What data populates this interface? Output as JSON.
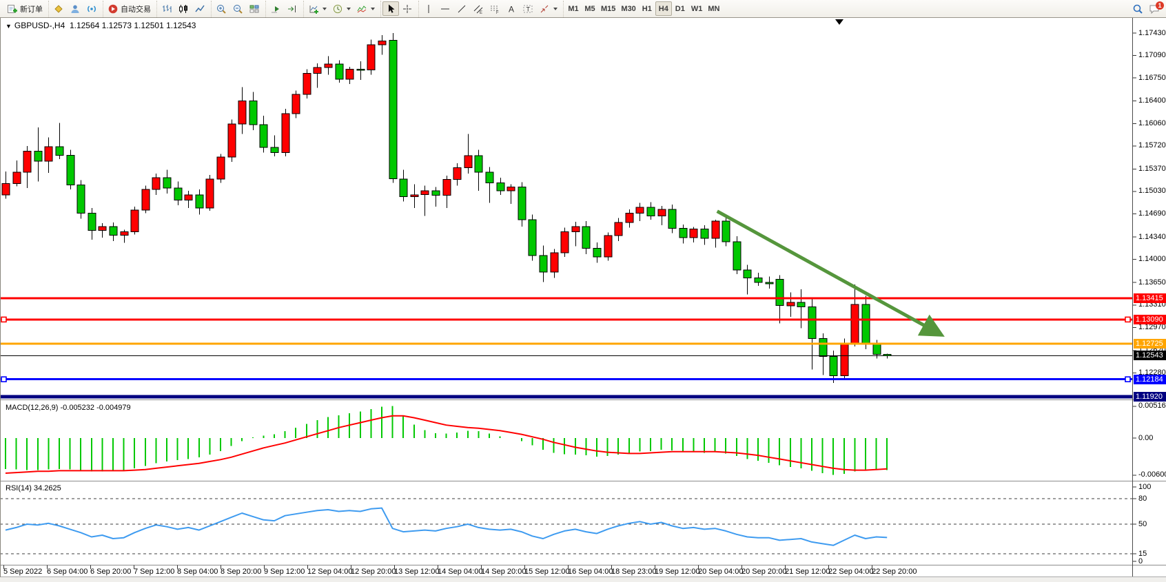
{
  "toolbar": {
    "new_order_label": "新订单",
    "autotrade_label": "自动交易",
    "timeframes": [
      "M1",
      "M5",
      "M15",
      "M30",
      "H1",
      "H4",
      "D1",
      "W1",
      "MN"
    ],
    "active_timeframe": "H4",
    "chat_badge": "1"
  },
  "chart": {
    "symbol_period": "GBPUSD-,H4",
    "ohlc_values": "1.12564 1.12573 1.12501 1.12543"
  },
  "chart_data": {
    "type": "candlestick",
    "symbol": "GBPUSD-",
    "timeframe": "H4",
    "up_color": "#ff0000",
    "down_color": "#00c800",
    "current": {
      "open": "1.12564",
      "high": "1.12573",
      "low": "1.12501",
      "close": "1.12543"
    },
    "y_axis_ticks": [
      "1.17430",
      "1.17090",
      "1.16750",
      "1.16400",
      "1.16060",
      "1.15720",
      "1.15370",
      "1.15030",
      "1.14690",
      "1.14340",
      "1.14000",
      "1.13650",
      "1.13310",
      "1.12970",
      "1.12620",
      "1.12280"
    ],
    "x_axis_labels": [
      "5 Sep 2022",
      "6 Sep 04:00",
      "6 Sep 20:00",
      "7 Sep 12:00",
      "8 Sep 04:00",
      "8 Sep 20:00",
      "9 Sep 12:00",
      "12 Sep 04:00",
      "12 Sep 20:00",
      "13 Sep 12:00",
      "14 Sep 04:00",
      "14 Sep 20:00",
      "15 Sep 12:00",
      "16 Sep 04:00",
      "18 Sep 23:00",
      "19 Sep 12:00",
      "20 Sep 04:00",
      "20 Sep 20:00",
      "21 Sep 12:00",
      "22 Sep 04:00",
      "22 Sep 20:00"
    ],
    "candles": [
      [
        1.1498,
        1.1533,
        1.1492,
        1.1515
      ],
      [
        1.1515,
        1.155,
        1.1511,
        1.1532
      ],
      [
        1.1532,
        1.1572,
        1.1508,
        1.1564
      ],
      [
        1.1564,
        1.16,
        1.1518,
        1.1549
      ],
      [
        1.1549,
        1.1585,
        1.1531,
        1.1571
      ],
      [
        1.1571,
        1.1607,
        1.1552,
        1.1558
      ],
      [
        1.1558,
        1.1566,
        1.1506,
        1.1513
      ],
      [
        1.1513,
        1.152,
        1.1462,
        1.147
      ],
      [
        1.147,
        1.1478,
        1.143,
        1.1444
      ],
      [
        1.1444,
        1.1455,
        1.1433,
        1.145
      ],
      [
        1.145,
        1.1456,
        1.1428,
        1.1437
      ],
      [
        1.1437,
        1.1445,
        1.1425,
        1.1442
      ],
      [
        1.1442,
        1.148,
        1.1438,
        1.1475
      ],
      [
        1.1475,
        1.1512,
        1.147,
        1.1506
      ],
      [
        1.1506,
        1.153,
        1.1498,
        1.1524
      ],
      [
        1.1524,
        1.1536,
        1.15,
        1.1508
      ],
      [
        1.1508,
        1.1518,
        1.1482,
        1.149
      ],
      [
        1.149,
        1.1504,
        1.1478,
        1.1498
      ],
      [
        1.1498,
        1.1506,
        1.1468,
        1.1478
      ],
      [
        1.1478,
        1.1528,
        1.1474,
        1.1522
      ],
      [
        1.1522,
        1.156,
        1.1516,
        1.1555
      ],
      [
        1.1555,
        1.1612,
        1.1548,
        1.1605
      ],
      [
        1.1605,
        1.1661,
        1.159,
        1.164
      ],
      [
        1.164,
        1.1654,
        1.1596,
        1.1604
      ],
      [
        1.1604,
        1.1618,
        1.1562,
        1.157
      ],
      [
        1.157,
        1.1588,
        1.1556,
        1.1562
      ],
      [
        1.1562,
        1.1628,
        1.1556,
        1.1621
      ],
      [
        1.1621,
        1.1656,
        1.1614,
        1.165
      ],
      [
        1.165,
        1.1688,
        1.1644,
        1.1682
      ],
      [
        1.1682,
        1.1697,
        1.166,
        1.1691
      ],
      [
        1.1691,
        1.1708,
        1.168,
        1.1696
      ],
      [
        1.1696,
        1.1702,
        1.1668,
        1.1673
      ],
      [
        1.1673,
        1.1692,
        1.1666,
        1.1688
      ],
      [
        1.1688,
        1.17,
        1.1672,
        1.1687
      ],
      [
        1.1687,
        1.1733,
        1.168,
        1.1725
      ],
      [
        1.1725,
        1.174,
        1.171,
        1.1731
      ],
      [
        1.1732,
        1.1743,
        1.1516,
        1.1522
      ],
      [
        1.1522,
        1.1536,
        1.1488,
        1.1495
      ],
      [
        1.1495,
        1.1514,
        1.1478,
        1.1498
      ],
      [
        1.1498,
        1.1512,
        1.1466,
        1.1504
      ],
      [
        1.1504,
        1.151,
        1.148,
        1.1497
      ],
      [
        1.1497,
        1.1527,
        1.1478,
        1.1521
      ],
      [
        1.1521,
        1.1546,
        1.1512,
        1.1539
      ],
      [
        1.1539,
        1.159,
        1.153,
        1.1557
      ],
      [
        1.1557,
        1.1566,
        1.1504,
        1.1532
      ],
      [
        1.1532,
        1.154,
        1.1486,
        1.1516
      ],
      [
        1.1516,
        1.1524,
        1.1498,
        1.1504
      ],
      [
        1.1504,
        1.1514,
        1.1484,
        1.151
      ],
      [
        1.151,
        1.1517,
        1.145,
        1.146
      ],
      [
        1.146,
        1.1468,
        1.1398,
        1.1406
      ],
      [
        1.1406,
        1.1421,
        1.1366,
        1.1381
      ],
      [
        1.1381,
        1.1416,
        1.1372,
        1.141
      ],
      [
        1.141,
        1.1448,
        1.1404,
        1.1442
      ],
      [
        1.1442,
        1.1457,
        1.142,
        1.145
      ],
      [
        1.145,
        1.1458,
        1.1408,
        1.1417
      ],
      [
        1.1417,
        1.1426,
        1.1395,
        1.1404
      ],
      [
        1.1404,
        1.1441,
        1.1398,
        1.1436
      ],
      [
        1.1436,
        1.1463,
        1.1428,
        1.1456
      ],
      [
        1.1456,
        1.1476,
        1.1448,
        1.147
      ],
      [
        1.147,
        1.1486,
        1.1458,
        1.1479
      ],
      [
        1.1479,
        1.1487,
        1.146,
        1.1466
      ],
      [
        1.1466,
        1.1481,
        1.1452,
        1.1476
      ],
      [
        1.1476,
        1.1483,
        1.144,
        1.1447
      ],
      [
        1.1447,
        1.1453,
        1.1424,
        1.1433
      ],
      [
        1.1433,
        1.1449,
        1.1426,
        1.1446
      ],
      [
        1.1446,
        1.1452,
        1.1422,
        1.1432
      ],
      [
        1.1432,
        1.146,
        1.1418,
        1.1458
      ],
      [
        1.1458,
        1.1464,
        1.142,
        1.1427
      ],
      [
        1.1427,
        1.1435,
        1.1378,
        1.1384
      ],
      [
        1.1384,
        1.1392,
        1.1347,
        1.1372
      ],
      [
        1.1372,
        1.138,
        1.136,
        1.1365
      ],
      [
        1.1365,
        1.1374,
        1.1356,
        1.1363
      ],
      [
        1.137,
        1.1376,
        1.1303,
        1.133
      ],
      [
        1.133,
        1.135,
        1.1313,
        1.1335
      ],
      [
        1.1335,
        1.1355,
        1.1296,
        1.1328
      ],
      [
        1.1328,
        1.134,
        1.1233,
        1.128
      ],
      [
        1.128,
        1.1288,
        1.1225,
        1.1253
      ],
      [
        1.1253,
        1.1262,
        1.1213,
        1.1224
      ],
      [
        1.1224,
        1.128,
        1.1218,
        1.1272
      ],
      [
        1.1272,
        1.1362,
        1.1268,
        1.1332
      ],
      [
        1.1332,
        1.1345,
        1.1264,
        1.1272
      ],
      [
        1.1272,
        1.1278,
        1.125,
        1.12564
      ],
      [
        1.12564,
        1.12573,
        1.12501,
        1.12543
      ]
    ],
    "hlines": [
      {
        "name": "resistance-line-1",
        "price": 1.13415,
        "label": "1.13415",
        "color": "#ff0000",
        "width": 3,
        "markers": false
      },
      {
        "name": "resistance-line-2",
        "price": 1.1309,
        "label": "1.13090",
        "color": "#ff0000",
        "width": 3,
        "markers": true
      },
      {
        "name": "pivot-line-orange",
        "price": 1.12725,
        "label": "1.12725",
        "color": "#ffa500",
        "width": 3,
        "markers": false
      },
      {
        "name": "current-price-line",
        "price": 1.12543,
        "label": "1.12543",
        "color": "#000000",
        "width": 1,
        "markers": false
      },
      {
        "name": "support-line-blue",
        "price": 1.12184,
        "label": "1.12184",
        "color": "#0000ff",
        "width": 3,
        "markers": true
      },
      {
        "name": "support-line-navy",
        "price": 1.1192,
        "label": "1.11920",
        "color": "#000080",
        "width": 5,
        "markers": false
      }
    ],
    "trend_arrow": {
      "from_bar": 66.2,
      "from_price": 1.1473,
      "to_bar": 86.8,
      "to_price": 1.1288,
      "color": "#55963c"
    },
    "macd": {
      "label": "MACD(12,26,9)",
      "values_label": "-0.005232 -0.004979",
      "hist_color": "#00c800",
      "signal_color": "#ff0000",
      "scale_ticks": [
        "0.005163",
        "0.00",
        "-0.006007"
      ],
      "hist": [
        -0.005,
        -0.0051,
        -0.0052,
        -0.0052,
        -0.0051,
        -0.005,
        -0.0051,
        -0.0052,
        -0.0054,
        -0.0054,
        -0.0053,
        -0.0052,
        -0.0049,
        -0.0045,
        -0.0041,
        -0.0038,
        -0.0036,
        -0.0034,
        -0.0031,
        -0.0027,
        -0.0021,
        -0.0013,
        -0.0005,
        0.0001,
        0.0004,
        0.0006,
        0.0011,
        0.0017,
        0.0023,
        0.0029,
        0.0034,
        0.0037,
        0.004,
        0.0043,
        0.0047,
        0.0051,
        0.0052,
        0.0036,
        0.0022,
        0.0013,
        0.0008,
        0.0007,
        0.0009,
        0.0012,
        0.0011,
        0.0007,
        0.0003,
        0.0,
        -0.0005,
        -0.0012,
        -0.0019,
        -0.0024,
        -0.0026,
        -0.0027,
        -0.0028,
        -0.003,
        -0.0029,
        -0.0027,
        -0.0025,
        -0.0022,
        -0.0021,
        -0.0019,
        -0.002,
        -0.0022,
        -0.0023,
        -0.0024,
        -0.0023,
        -0.0025,
        -0.0029,
        -0.0034,
        -0.0037,
        -0.004,
        -0.0044,
        -0.0047,
        -0.0049,
        -0.0053,
        -0.0057,
        -0.006,
        -0.0058,
        -0.0054,
        -0.0051,
        -0.0051,
        -0.0052
      ],
      "signal": [
        -0.0057,
        -0.0056,
        -0.0055,
        -0.0054,
        -0.0054,
        -0.0053,
        -0.0053,
        -0.0053,
        -0.0053,
        -0.0053,
        -0.0053,
        -0.0053,
        -0.0052,
        -0.0051,
        -0.0049,
        -0.0047,
        -0.0045,
        -0.0043,
        -0.0041,
        -0.0038,
        -0.0035,
        -0.0031,
        -0.0026,
        -0.0021,
        -0.0016,
        -0.0012,
        -0.0008,
        -0.0003,
        0.0002,
        0.0007,
        0.0012,
        0.0017,
        0.0021,
        0.0025,
        0.0029,
        0.0033,
        0.0036,
        0.0036,
        0.0033,
        0.0029,
        0.0025,
        0.0021,
        0.0019,
        0.0017,
        0.0016,
        0.0014,
        0.0012,
        0.0009,
        0.0006,
        0.0002,
        -0.0002,
        -0.0007,
        -0.0011,
        -0.0015,
        -0.0018,
        -0.0021,
        -0.0023,
        -0.0024,
        -0.0025,
        -0.0025,
        -0.0024,
        -0.0023,
        -0.0022,
        -0.0022,
        -0.0022,
        -0.0022,
        -0.0022,
        -0.0023,
        -0.0024,
        -0.0026,
        -0.0028,
        -0.0031,
        -0.0034,
        -0.0037,
        -0.004,
        -0.0043,
        -0.0046,
        -0.0049,
        -0.0051,
        -0.0052,
        -0.0052,
        -0.0051,
        -0.005
      ]
    },
    "rsi": {
      "label": "RSI(14)",
      "value_label": "34.2625",
      "color": "#3e9bf0",
      "levels": [
        80,
        50,
        15
      ],
      "scale_ticks": [
        "100",
        "80",
        "50",
        "15",
        "0"
      ],
      "values": [
        43,
        46,
        50,
        49,
        51,
        48,
        44,
        40,
        35,
        37,
        33,
        34,
        40,
        45,
        49,
        47,
        44,
        46,
        43,
        48,
        53,
        58,
        63,
        59,
        55,
        54,
        60,
        62,
        64,
        66,
        67,
        65,
        66,
        65,
        68,
        69,
        45,
        41,
        42,
        43,
        42,
        45,
        47,
        50,
        46,
        44,
        43,
        44,
        41,
        36,
        33,
        38,
        42,
        44,
        41,
        39,
        44,
        48,
        51,
        53,
        50,
        52,
        48,
        45,
        46,
        44,
        45,
        42,
        38,
        35,
        34,
        34,
        31,
        32,
        33,
        29,
        27,
        25,
        31,
        37,
        33,
        35,
        34.26
      ]
    }
  }
}
